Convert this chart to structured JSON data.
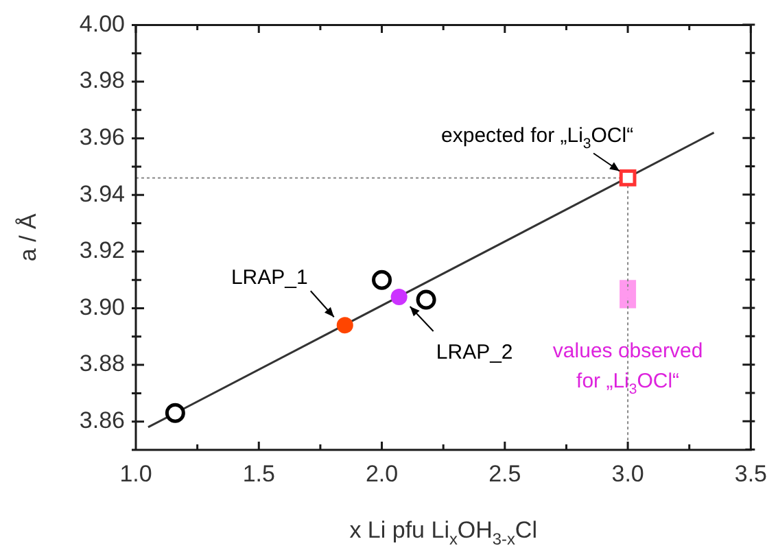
{
  "chart_data": {
    "type": "scatter",
    "xlabel": "x Li pfu Li$_{x}$OH$_{3-x}$Cl",
    "ylabel": "a / Å",
    "xlim": [
      1.0,
      3.5
    ],
    "ylim": [
      3.85,
      4.0
    ],
    "xticks": [
      {
        "value": 1.0,
        "label": "1.0"
      },
      {
        "value": 1.25,
        "label": null
      },
      1.5,
      {
        "value": 1.75,
        "label": null
      },
      {
        "value": 2.0,
        "label": "2.0"
      },
      {
        "value": 2.25,
        "label": null
      },
      2.5,
      {
        "value": 2.75,
        "label": null
      },
      {
        "value": 3.0,
        "label": "3.0"
      },
      {
        "value": 3.25,
        "label": null
      },
      3.5
    ],
    "yticks": [
      {
        "value": 3.85,
        "label": null
      },
      3.86,
      {
        "value": 3.87,
        "label": null
      },
      3.88,
      {
        "value": 3.89,
        "label": null
      },
      {
        "value": 3.9,
        "label": "3.90"
      },
      {
        "value": 3.91,
        "label": null
      },
      3.92,
      {
        "value": 3.93,
        "label": null
      },
      3.94,
      {
        "value": 3.95,
        "label": null
      },
      3.96,
      {
        "value": 3.97,
        "label": null
      },
      3.98,
      {
        "value": 3.99,
        "label": null
      },
      {
        "value": 4.0,
        "label": "4.00"
      }
    ],
    "grid": false,
    "legend": false,
    "series": [
      {
        "type": "scatter",
        "marker": "circle",
        "color": "#000000",
        "x": [
          1.16,
          2.0,
          2.18
        ],
        "values": [
          3.863,
          3.91,
          3.903
        ]
      },
      {
        "type": "scatter",
        "marker": "circle",
        "color": "#ff4500",
        "x": [
          1.85
        ],
        "values": [
          3.894
        ]
      },
      {
        "type": "scatter",
        "marker": "circle",
        "color": "#cc33ff",
        "x": [
          2.07
        ],
        "values": [
          3.904
        ]
      },
      {
        "type": "scatter",
        "marker": "square",
        "color": "#ff3333",
        "x": [
          3.0
        ],
        "values": [
          3.946
        ]
      },
      {
        "type": "scatter",
        "marker": "square",
        "color": "#ff99ee",
        "x": [
          3.0
        ],
        "values": [
          3.905
        ],
        "errors": [
          [
            3.9,
            3.91
          ]
        ]
      },
      {
        "type": "line",
        "marker": "none",
        "color": "#333333",
        "line_style": "solid",
        "x": [
          1.05,
          3.35
        ],
        "values": [
          3.858,
          3.962
        ]
      },
      {
        "type": "line",
        "marker": "none",
        "color": "#888888",
        "line_style": "dotted",
        "x": [
          1.0,
          3.0,
          3.0
        ],
        "values": [
          3.946,
          3.946,
          3.85
        ]
      }
    ],
    "annotations": [
      {
        "text": "expected for „Li$_{3}$OCl“",
        "x": 3.0,
        "y": 3.946
      },
      {
        "text": "LRAP_1",
        "x": 1.85,
        "y": 3.894
      },
      {
        "text": "LRAP_2",
        "x": 2.07,
        "y": 3.904
      },
      {
        "text": "values observed for „Li$_{3}$OCl“",
        "x": 3.0,
        "y": 3.905
      }
    ]
  }
}
